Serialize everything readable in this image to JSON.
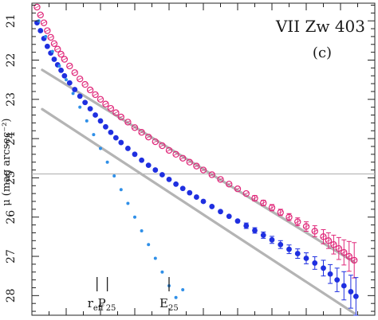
{
  "chart_data": {
    "type": "scatter",
    "title": "VII Zw 403",
    "panel_label": "(c)",
    "ylabel": "μ (mag arcsec⁻²)",
    "xlabel": "",
    "y_inverted": true,
    "ylim": [
      20.55,
      28.5
    ],
    "xlim": [
      0,
      100
    ],
    "y_tick_labels": [
      "21",
      "22",
      "23",
      "24",
      "25",
      "26",
      "27",
      "28"
    ],
    "y_ticks": [
      21,
      22,
      23,
      24,
      25,
      26,
      27,
      28
    ],
    "reference_line": {
      "y": 24.9,
      "color": "#b8b8b8"
    },
    "colors": {
      "magenta": "#e0287a",
      "blue": "#1f2fe0",
      "lightblue": "#2f8fe8",
      "fit_line": "#b4b4b4"
    },
    "series": [
      {
        "style": "open-circle",
        "color": "magenta",
        "x": [
          1.5,
          2.5,
          3.5,
          4.5,
          5.5,
          6.5,
          7.5,
          8.5,
          9.5,
          11,
          12.5,
          14,
          15.5,
          17,
          18.5,
          20,
          21.5,
          23,
          24.5,
          26,
          28,
          30,
          32,
          34,
          36,
          38,
          40,
          42,
          44,
          46,
          48,
          50,
          52.5,
          55,
          57.5,
          60,
          62.5,
          65,
          67.5,
          70,
          72.5,
          75,
          77.5,
          80,
          82.5,
          85,
          86.5,
          88,
          89.5,
          91,
          92.5,
          94
        ],
        "y": [
          20.65,
          20.85,
          21.05,
          21.25,
          21.42,
          21.58,
          21.72,
          21.85,
          21.98,
          22.15,
          22.32,
          22.48,
          22.62,
          22.76,
          22.88,
          23.0,
          23.12,
          23.23,
          23.34,
          23.45,
          23.58,
          23.72,
          23.84,
          23.96,
          24.08,
          24.18,
          24.3,
          24.4,
          24.5,
          24.6,
          24.7,
          24.8,
          24.92,
          25.04,
          25.16,
          25.28,
          25.4,
          25.52,
          25.64,
          25.76,
          25.88,
          26.0,
          26.12,
          26.24,
          26.36,
          26.5,
          26.6,
          26.7,
          26.8,
          26.9,
          27.0,
          27.1
        ],
        "err": [
          0.02,
          0.02,
          0.02,
          0.02,
          0.02,
          0.02,
          0.02,
          0.02,
          0.02,
          0.02,
          0.02,
          0.02,
          0.02,
          0.02,
          0.02,
          0.02,
          0.02,
          0.02,
          0.02,
          0.02,
          0.02,
          0.02,
          0.03,
          0.03,
          0.03,
          0.03,
          0.03,
          0.03,
          0.03,
          0.04,
          0.04,
          0.04,
          0.05,
          0.05,
          0.05,
          0.06,
          0.06,
          0.07,
          0.07,
          0.08,
          0.08,
          0.09,
          0.1,
          0.12,
          0.14,
          0.18,
          0.2,
          0.24,
          0.28,
          0.32,
          0.38,
          0.45
        ]
      },
      {
        "style": "filled-circle",
        "color": "blue",
        "x": [
          1.5,
          2.5,
          3.5,
          4.5,
          5.5,
          6.5,
          7.5,
          8.5,
          9.5,
          11,
          12.5,
          14,
          15.5,
          17,
          18.5,
          20,
          21.5,
          23,
          24.5,
          26,
          28,
          30,
          32,
          34,
          36,
          38,
          40,
          42,
          44,
          46,
          48,
          50,
          52.5,
          55,
          57.5,
          60,
          62.5,
          65,
          67.5,
          70,
          72.5,
          75,
          77.5,
          80,
          82.5,
          85,
          87,
          89,
          91,
          93,
          94.5
        ],
        "y": [
          21.05,
          21.25,
          21.45,
          21.65,
          21.82,
          21.98,
          22.12,
          22.26,
          22.4,
          22.58,
          22.75,
          22.92,
          23.08,
          23.24,
          23.4,
          23.55,
          23.7,
          23.84,
          23.98,
          24.1,
          24.25,
          24.4,
          24.55,
          24.68,
          24.8,
          24.92,
          25.04,
          25.16,
          25.27,
          25.38,
          25.49,
          25.6,
          25.73,
          25.86,
          25.98,
          26.1,
          26.22,
          26.34,
          26.46,
          26.58,
          26.7,
          26.82,
          26.93,
          27.05,
          27.17,
          27.3,
          27.45,
          27.6,
          27.75,
          27.9,
          28.02
        ],
        "err": [
          0.02,
          0.02,
          0.02,
          0.02,
          0.02,
          0.02,
          0.02,
          0.02,
          0.02,
          0.02,
          0.02,
          0.02,
          0.02,
          0.02,
          0.02,
          0.02,
          0.02,
          0.02,
          0.02,
          0.02,
          0.02,
          0.03,
          0.03,
          0.03,
          0.03,
          0.03,
          0.03,
          0.04,
          0.04,
          0.04,
          0.04,
          0.05,
          0.05,
          0.05,
          0.06,
          0.06,
          0.07,
          0.07,
          0.08,
          0.09,
          0.1,
          0.11,
          0.12,
          0.14,
          0.16,
          0.2,
          0.24,
          0.3,
          0.36,
          0.42,
          0.48
        ]
      },
      {
        "style": "small-dot",
        "color": "lightblue",
        "x": [
          2,
          4,
          6,
          8,
          10,
          12,
          14,
          16,
          18,
          20,
          22,
          24,
          26,
          28,
          30,
          32,
          34,
          36,
          38,
          40,
          42,
          44
        ],
        "y": [
          21.0,
          21.4,
          21.78,
          22.15,
          22.5,
          22.85,
          23.2,
          23.55,
          23.9,
          24.25,
          24.6,
          24.95,
          25.3,
          25.65,
          26.0,
          26.35,
          26.7,
          27.05,
          27.4,
          27.75,
          28.05,
          27.85
        ],
        "err": []
      }
    ],
    "fits": [
      {
        "color": "fit_line",
        "x": [
          3,
          94
        ],
        "y": [
          22.25,
          27.15
        ]
      },
      {
        "color": "fit_line",
        "x": [
          3,
          94
        ],
        "y": [
          23.25,
          28.45
        ]
      }
    ],
    "markers": [
      {
        "x": 19,
        "label": "r",
        "subscript": "eff"
      },
      {
        "x": 22,
        "label": "P",
        "subscript": "25"
      },
      {
        "x": 40,
        "label": "E",
        "subscript": "25"
      }
    ]
  }
}
